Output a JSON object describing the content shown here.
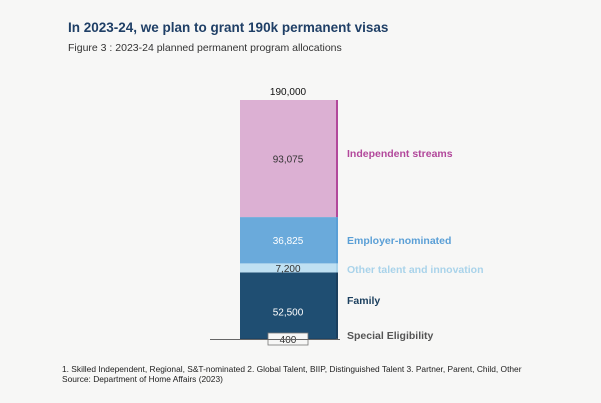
{
  "header": {
    "title": "In 2023-24, we plan to grant 190k permanent visas",
    "subtitle": "Figure 3 : 2023-24 planned permanent program allocations"
  },
  "footer": {
    "notes": "1. Skilled Independent, Regional, S&T-nominated  2. Global Talent, BIIP, Distinguished Talent  3. Partner, Parent, Child, Other",
    "source": "Source: Department of Home Affairs (2023)"
  },
  "chart_data": {
    "type": "bar",
    "stacked": true,
    "total_label": "190,000",
    "categories": [
      "2023-24"
    ],
    "series": [
      {
        "name": "Special Eligibility",
        "values": [
          400
        ],
        "label": "400",
        "color": "#1b3f5e",
        "label_color": "#555555"
      },
      {
        "name": "Family",
        "values": [
          52500
        ],
        "label": "52,500",
        "color": "#1f4e72",
        "label_color": "#1b3f5e"
      },
      {
        "name": "Other talent and innovation",
        "values": [
          7200
        ],
        "label": "7,200",
        "color": "#bfe0f2",
        "label_color": "#a9d3ea"
      },
      {
        "name": "Employer-nominated",
        "values": [
          36825
        ],
        "label": "36,825",
        "color": "#6aaadb",
        "label_color": "#5a9fd6"
      },
      {
        "name": "Independent streams",
        "values": [
          93075
        ],
        "label": "93,075",
        "color": "#dcb0d3",
        "label_color": "#b2489b"
      }
    ],
    "ylim": [
      0,
      190000
    ],
    "legend": "right of bar",
    "grid": false
  }
}
